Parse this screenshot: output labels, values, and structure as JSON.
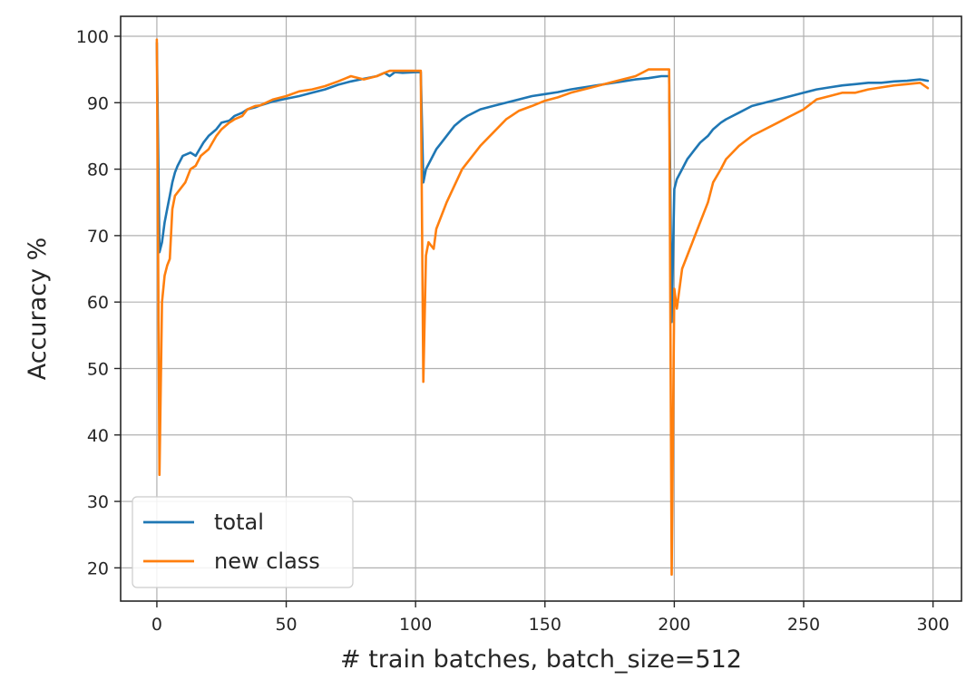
{
  "chart_data": {
    "type": "line",
    "title": "",
    "xlabel": "# train batches, batch_size=512",
    "ylabel": "Accuracy %",
    "xlim": [
      -14,
      311
    ],
    "ylim": [
      15,
      103
    ],
    "xticks": [
      0,
      50,
      100,
      150,
      200,
      250,
      300
    ],
    "yticks": [
      20,
      30,
      40,
      50,
      60,
      70,
      80,
      90,
      100
    ],
    "grid": true,
    "legend_position": "lower-left",
    "series": [
      {
        "name": "total",
        "color": "#1f77b4",
        "points": [
          [
            0,
            99
          ],
          [
            1,
            67.5
          ],
          [
            2,
            69
          ],
          [
            3,
            72
          ],
          [
            4,
            74
          ],
          [
            5,
            76
          ],
          [
            6,
            78
          ],
          [
            7,
            79.5
          ],
          [
            8,
            80.5
          ],
          [
            10,
            82
          ],
          [
            13,
            82.5
          ],
          [
            15,
            82
          ],
          [
            18,
            84
          ],
          [
            20,
            85
          ],
          [
            23,
            86
          ],
          [
            25,
            87
          ],
          [
            28,
            87.3
          ],
          [
            30,
            88
          ],
          [
            33,
            88.5
          ],
          [
            35,
            89
          ],
          [
            38,
            89.3
          ],
          [
            40,
            89.6
          ],
          [
            45,
            90.2
          ],
          [
            50,
            90.6
          ],
          [
            55,
            91
          ],
          [
            60,
            91.5
          ],
          [
            65,
            92
          ],
          [
            70,
            92.7
          ],
          [
            75,
            93.2
          ],
          [
            80,
            93.6
          ],
          [
            85,
            94
          ],
          [
            88,
            94.5
          ],
          [
            90,
            94
          ],
          [
            92,
            94.6
          ],
          [
            95,
            94.5
          ],
          [
            100,
            94.6
          ],
          [
            101,
            94.6
          ],
          [
            102,
            94.6
          ],
          [
            103,
            78
          ],
          [
            104,
            80
          ],
          [
            106,
            81.5
          ],
          [
            108,
            83
          ],
          [
            110,
            84
          ],
          [
            112,
            85
          ],
          [
            115,
            86.5
          ],
          [
            118,
            87.5
          ],
          [
            120,
            88
          ],
          [
            125,
            89
          ],
          [
            130,
            89.5
          ],
          [
            135,
            90
          ],
          [
            140,
            90.5
          ],
          [
            145,
            91
          ],
          [
            150,
            91.3
          ],
          [
            155,
            91.6
          ],
          [
            160,
            92
          ],
          [
            165,
            92.3
          ],
          [
            170,
            92.6
          ],
          [
            175,
            92.9
          ],
          [
            180,
            93.2
          ],
          [
            185,
            93.5
          ],
          [
            190,
            93.7
          ],
          [
            195,
            94
          ],
          [
            198,
            94
          ],
          [
            199,
            57
          ],
          [
            200,
            77
          ],
          [
            201,
            78.5
          ],
          [
            203,
            80
          ],
          [
            205,
            81.5
          ],
          [
            208,
            83
          ],
          [
            210,
            84
          ],
          [
            213,
            85
          ],
          [
            215,
            86
          ],
          [
            218,
            87
          ],
          [
            220,
            87.5
          ],
          [
            225,
            88.5
          ],
          [
            230,
            89.5
          ],
          [
            235,
            90
          ],
          [
            240,
            90.5
          ],
          [
            245,
            91
          ],
          [
            250,
            91.5
          ],
          [
            255,
            92
          ],
          [
            260,
            92.3
          ],
          [
            265,
            92.6
          ],
          [
            270,
            92.8
          ],
          [
            275,
            93
          ],
          [
            280,
            93
          ],
          [
            285,
            93.2
          ],
          [
            290,
            93.3
          ],
          [
            295,
            93.5
          ],
          [
            298,
            93.3
          ]
        ]
      },
      {
        "name": "new class",
        "color": "#ff7f0e",
        "points": [
          [
            0,
            99.5
          ],
          [
            1,
            34
          ],
          [
            2,
            60
          ],
          [
            3,
            64
          ],
          [
            4,
            65.5
          ],
          [
            5,
            66.5
          ],
          [
            6,
            74
          ],
          [
            7,
            76
          ],
          [
            9,
            77
          ],
          [
            11,
            78
          ],
          [
            13,
            80
          ],
          [
            15,
            80.5
          ],
          [
            17,
            82
          ],
          [
            20,
            83
          ],
          [
            23,
            85
          ],
          [
            25,
            86
          ],
          [
            28,
            87
          ],
          [
            30,
            87.5
          ],
          [
            33,
            88
          ],
          [
            35,
            89
          ],
          [
            38,
            89.5
          ],
          [
            40,
            89.6
          ],
          [
            45,
            90.5
          ],
          [
            50,
            91
          ],
          [
            55,
            91.7
          ],
          [
            60,
            92
          ],
          [
            65,
            92.5
          ],
          [
            70,
            93.2
          ],
          [
            75,
            94
          ],
          [
            80,
            93.5
          ],
          [
            85,
            94
          ],
          [
            88,
            94.5
          ],
          [
            90,
            94.8
          ],
          [
            95,
            94.8
          ],
          [
            100,
            94.8
          ],
          [
            102,
            94.8
          ],
          [
            103,
            48
          ],
          [
            104,
            67
          ],
          [
            105,
            69
          ],
          [
            107,
            68
          ],
          [
            108,
            71
          ],
          [
            110,
            73
          ],
          [
            112,
            75
          ],
          [
            115,
            77.5
          ],
          [
            118,
            80
          ],
          [
            120,
            81
          ],
          [
            125,
            83.5
          ],
          [
            130,
            85.5
          ],
          [
            135,
            87.5
          ],
          [
            140,
            88.8
          ],
          [
            145,
            89.5
          ],
          [
            150,
            90.3
          ],
          [
            155,
            90.8
          ],
          [
            160,
            91.5
          ],
          [
            165,
            92
          ],
          [
            170,
            92.5
          ],
          [
            175,
            93
          ],
          [
            180,
            93.5
          ],
          [
            185,
            94
          ],
          [
            188,
            94.6
          ],
          [
            190,
            95
          ],
          [
            195,
            95
          ],
          [
            198,
            95
          ],
          [
            199,
            19
          ],
          [
            200,
            62
          ],
          [
            201,
            59
          ],
          [
            203,
            65
          ],
          [
            205,
            67
          ],
          [
            208,
            70
          ],
          [
            210,
            72
          ],
          [
            213,
            75
          ],
          [
            215,
            78
          ],
          [
            218,
            80
          ],
          [
            220,
            81.5
          ],
          [
            225,
            83.5
          ],
          [
            230,
            85
          ],
          [
            235,
            86
          ],
          [
            240,
            87
          ],
          [
            245,
            88
          ],
          [
            250,
            89
          ],
          [
            255,
            90.5
          ],
          [
            260,
            91
          ],
          [
            265,
            91.5
          ],
          [
            270,
            91.5
          ],
          [
            275,
            92
          ],
          [
            280,
            92.3
          ],
          [
            285,
            92.6
          ],
          [
            290,
            92.8
          ],
          [
            295,
            93
          ],
          [
            298,
            92.2
          ]
        ]
      }
    ]
  }
}
